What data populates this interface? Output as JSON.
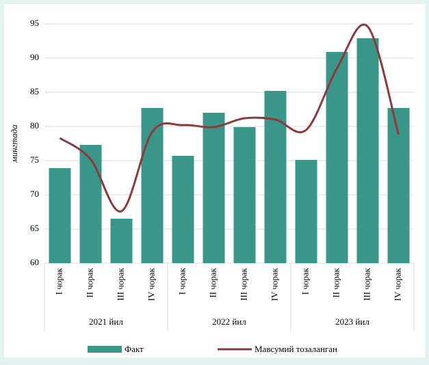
{
  "chart_data": {
    "type": "bar-line",
    "y_label": "мингтада",
    "categories": [
      "I чорак",
      "II чорак",
      "III чорак",
      "IV чорак",
      "I чорак",
      "II чорак",
      "III чорак",
      "IV чорак",
      "I чорак",
      "II чорак",
      "III чорак",
      "IV чорак"
    ],
    "groups": [
      "2021 йил",
      "2022 йил",
      "2023 йил"
    ],
    "series": [
      {
        "name": "Факт",
        "type": "bar",
        "color": "#3a9688",
        "values": [
          73.9,
          77.3,
          66.5,
          82.7,
          75.7,
          82.0,
          79.9,
          85.2,
          75.1,
          90.9,
          92.9,
          82.7
        ]
      },
      {
        "name": "Мавсумий тозаланган",
        "type": "line",
        "smooth": true,
        "color": "#8b3a3e",
        "values": [
          78.3,
          75.2,
          67.6,
          79.2,
          80.2,
          79.9,
          81.2,
          81.0,
          79.5,
          88.5,
          94.6,
          78.8
        ]
      }
    ],
    "ylim": [
      60,
      95
    ],
    "yticks": [
      60,
      65,
      70,
      75,
      80,
      85,
      90,
      95
    ],
    "grid": true
  }
}
